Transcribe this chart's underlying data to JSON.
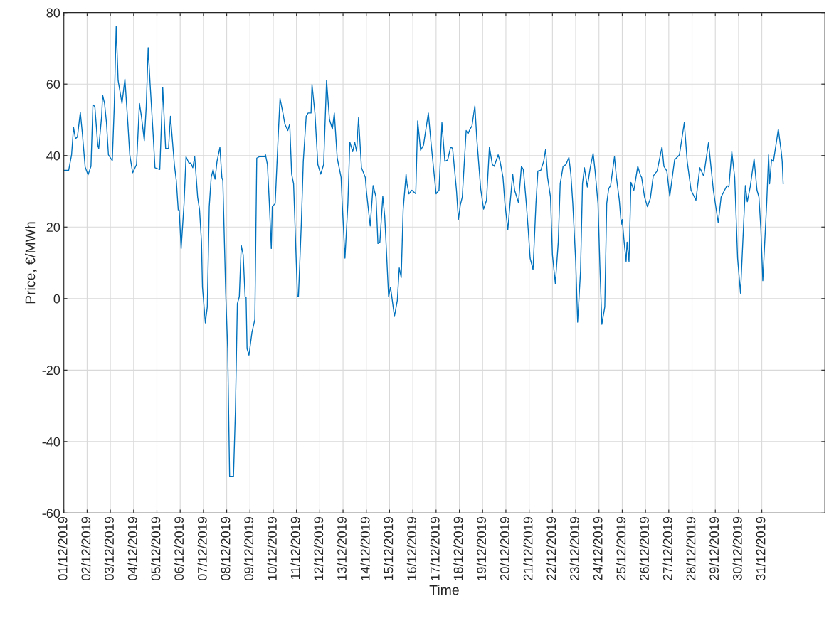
{
  "chart_data": {
    "type": "line",
    "xlabel": "Time",
    "ylabel": "Price, €/MWh",
    "x": [
      "2019-12-01T00:00",
      "2019-12-01T05:00",
      "2019-12-01T08:00",
      "2019-12-01T10:00",
      "2019-12-01T12:00",
      "2019-12-01T14:00",
      "2019-12-01T17:00",
      "2019-12-01T19:00",
      "2019-12-01T22:00",
      "2019-12-02T01:00",
      "2019-12-02T04:00",
      "2019-12-02T06:00",
      "2019-12-02T08:00",
      "2019-12-02T11:00",
      "2019-12-02T12:00",
      "2019-12-02T15:00",
      "2019-12-02T16:00",
      "2019-12-02T18:00",
      "2019-12-02T20:00",
      "2019-12-02T22:00",
      "2019-12-03T02:00",
      "2019-12-03T04:00",
      "2019-12-03T06:00",
      "2019-12-03T08:00",
      "2019-12-03T12:00",
      "2019-12-03T15:00",
      "2019-12-03T18:00",
      "2019-12-03T20:00",
      "2019-12-03T23:00",
      "2019-12-04T03:00",
      "2019-12-04T06:00",
      "2019-12-04T08:00",
      "2019-12-04T11:00",
      "2019-12-04T13:00",
      "2019-12-04T15:00",
      "2019-12-04T17:00",
      "2019-12-04T20:00",
      "2019-12-04T22:00",
      "2019-12-05T03:00",
      "2019-12-05T06:00",
      "2019-12-05T09:00",
      "2019-12-05T12:00",
      "2019-12-05T14:00",
      "2019-12-05T18:00",
      "2019-12-05T20:00",
      "2019-12-05T22:00",
      "2019-12-05T23:00",
      "2019-12-06T01:00",
      "2019-12-06T04:00",
      "2019-12-06T06:00",
      "2019-12-06T09:00",
      "2019-12-06T11:00",
      "2019-12-06T13:00",
      "2019-12-06T15:00",
      "2019-12-06T18:00",
      "2019-12-06T20:00",
      "2019-12-06T22:00",
      "2019-12-06T23:00",
      "2019-12-07T02:00",
      "2019-12-07T04:00",
      "2019-12-07T06:00",
      "2019-12-07T08:00",
      "2019-12-07T10:00",
      "2019-12-07T12:00",
      "2019-12-07T14:00",
      "2019-12-07T17:00",
      "2019-12-07T19:00",
      "2019-12-07T20:00",
      "2019-12-07T23:00",
      "2019-12-08T01:00",
      "2019-12-08T03:00",
      "2019-12-08T07:00",
      "2019-12-08T09:00",
      "2019-12-08T11:00",
      "2019-12-08T13:00",
      "2019-12-08T15:00",
      "2019-12-08T17:00",
      "2019-12-08T19:00",
      "2019-12-08T20:00",
      "2019-12-08T21:00",
      "2019-12-08T23:00",
      "2019-12-09T02:00",
      "2019-12-09T05:00",
      "2019-12-09T07:00",
      "2019-12-09T10:00",
      "2019-12-09T15:00",
      "2019-12-09T16:00",
      "2019-12-09T18:00",
      "2019-12-09T20:00",
      "2019-12-09T22:00",
      "2019-12-09T23:00",
      "2019-12-10T02:00",
      "2019-12-10T05:00",
      "2019-12-10T07:00",
      "2019-12-10T10:00",
      "2019-12-10T12:00",
      "2019-12-10T15:00",
      "2019-12-10T17:00",
      "2019-12-10T19:00",
      "2019-12-10T21:00",
      "2019-12-11T01:00",
      "2019-12-11T02:00",
      "2019-12-11T05:00",
      "2019-12-11T07:00",
      "2019-12-11T10:00",
      "2019-12-11T12:00",
      "2019-12-11T15:00",
      "2019-12-11T16:00",
      "2019-12-11T19:00",
      "2019-12-11T22:00",
      "2019-12-12T01:00",
      "2019-12-12T04:00",
      "2019-12-12T07:00",
      "2019-12-12T10:00",
      "2019-12-12T13:00",
      "2019-12-12T15:00",
      "2019-12-12T18:00",
      "2019-12-12T22:00",
      "2019-12-12T23:00",
      "2019-12-13T02:00",
      "2019-12-13T05:00",
      "2019-12-13T07:00",
      "2019-12-13T10:00",
      "2019-12-13T12:00",
      "2019-12-13T14:00",
      "2019-12-13T16:00",
      "2019-12-13T19:00",
      "2019-12-13T23:00",
      "2019-12-14T00:00",
      "2019-12-14T04:00",
      "2019-12-14T07:00",
      "2019-12-14T10:00",
      "2019-12-14T12:00",
      "2019-12-14T14:00",
      "2019-12-14T17:00",
      "2019-12-14T19:00",
      "2019-12-14T20:00",
      "2019-12-14T23:00",
      "2019-12-15T01:00",
      "2019-12-15T05:00",
      "2019-12-15T08:00",
      "2019-12-15T10:00",
      "2019-12-15T12:00",
      "2019-12-15T14:00",
      "2019-12-15T17:00",
      "2019-12-15T18:00",
      "2019-12-15T20:00",
      "2019-12-15T23:00",
      "2019-12-16T03:00",
      "2019-12-16T05:00",
      "2019-12-16T08:00",
      "2019-12-16T11:00",
      "2019-12-16T16:00",
      "2019-12-16T19:00",
      "2019-12-17T00:00",
      "2019-12-17T03:00",
      "2019-12-17T06:00",
      "2019-12-17T09:00",
      "2019-12-17T12:00",
      "2019-12-17T15:00",
      "2019-12-17T17:00",
      "2019-12-17T21:00",
      "2019-12-17T23:00",
      "2019-12-18T01:00",
      "2019-12-18T03:00",
      "2019-12-18T07:00",
      "2019-12-18T09:00",
      "2019-12-18T11:00",
      "2019-12-18T13:00",
      "2019-12-18T16:00",
      "2019-12-18T18:00",
      "2019-12-18T22:00",
      "2019-12-19T01:00",
      "2019-12-19T04:00",
      "2019-12-19T07:00",
      "2019-12-19T10:00",
      "2019-12-19T12:00",
      "2019-12-19T16:00",
      "2019-12-19T18:00",
      "2019-12-19T21:00",
      "2019-12-19T23:00",
      "2019-12-20T02:00",
      "2019-12-20T04:00",
      "2019-12-20T07:00",
      "2019-12-20T09:00",
      "2019-12-20T13:00",
      "2019-12-20T16:00",
      "2019-12-20T18:00",
      "2019-12-20T21:00",
      "2019-12-20T23:00",
      "2019-12-21T01:00",
      "2019-12-21T04:00",
      "2019-12-21T07:00",
      "2019-12-21T09:00",
      "2019-12-21T12:00",
      "2019-12-21T15:00",
      "2019-12-21T17:00",
      "2019-12-21T19:00",
      "2019-12-21T22:00",
      "2019-12-22T00:00",
      "2019-12-22T03:00",
      "2019-12-22T06:00",
      "2019-12-22T08:00",
      "2019-12-22T11:00",
      "2019-12-22T14:00",
      "2019-12-22T17:00",
      "2019-12-22T19:00",
      "2019-12-22T21:00",
      "2019-12-23T00:00",
      "2019-12-23T02:00",
      "2019-12-23T05:00",
      "2019-12-23T07:00",
      "2019-12-23T09:00",
      "2019-12-23T12:00",
      "2019-12-23T15:00",
      "2019-12-23T18:00",
      "2019-12-23T20:00",
      "2019-12-23T23:00",
      "2019-12-24T01:00",
      "2019-12-24T03:00",
      "2019-12-24T06:00",
      "2019-12-24T08:00",
      "2019-12-24T10:00",
      "2019-12-24T12:00",
      "2019-12-24T16:00",
      "2019-12-24T18:00",
      "2019-12-24T21:00",
      "2019-12-24T23:00",
      "2019-12-25T00:00",
      "2019-12-25T02:00",
      "2019-12-25T04:00",
      "2019-12-25T05:00",
      "2019-12-25T07:00",
      "2019-12-25T09:00",
      "2019-12-25T12:00",
      "2019-12-25T16:00",
      "2019-12-25T19:00",
      "2019-12-25T20:00",
      "2019-12-25T23:00",
      "2019-12-26T02:00",
      "2019-12-26T05:00",
      "2019-12-26T08:00",
      "2019-12-26T12:00",
      "2019-12-26T17:00",
      "2019-12-26T19:00",
      "2019-12-26T22:00",
      "2019-12-27T01:00",
      "2019-12-27T06:00",
      "2019-12-27T11:00",
      "2019-12-27T16:00",
      "2019-12-27T19:00",
      "2019-12-27T23:00",
      "2019-12-28T04:00",
      "2019-12-28T08:00",
      "2019-12-28T12:00",
      "2019-12-28T17:00",
      "2019-12-28T22:00",
      "2019-12-29T03:00",
      "2019-12-29T06:00",
      "2019-12-29T12:00",
      "2019-12-29T14:00",
      "2019-12-29T17:00",
      "2019-12-29T20:00",
      "2019-12-29T23:00",
      "2019-12-30T02:00",
      "2019-12-30T07:00",
      "2019-12-30T09:00",
      "2019-12-30T12:00",
      "2019-12-30T16:00",
      "2019-12-30T19:00",
      "2019-12-30T21:00",
      "2019-12-30T23:00",
      "2019-12-31T01:00",
      "2019-12-31T05:00",
      "2019-12-31T07:00",
      "2019-12-31T08:00",
      "2019-12-31T10:00",
      "2019-12-31T12:00",
      "2019-12-31T17:00",
      "2019-12-31T20:00",
      "2019-12-31T21:00",
      "2019-12-31T22:00"
    ],
    "series": [
      {
        "color": "#0072bd",
        "values": [
          35.9,
          35.9,
          40.2,
          47.9,
          44.7,
          45.2,
          52.1,
          46.5,
          36.8,
          34.6,
          37.0,
          54.2,
          53.7,
          42.9,
          42.0,
          51.0,
          56.9,
          54.6,
          49.2,
          40.2,
          38.6,
          53.7,
          76.1,
          61.0,
          54.6,
          61.4,
          49.2,
          40.2,
          35.2,
          37.5,
          54.6,
          51.0,
          44.2,
          53.7,
          70.2,
          60.0,
          46.5,
          36.6,
          36.1,
          59.1,
          42.0,
          42.0,
          51.0,
          37.5,
          33.0,
          24.8,
          24.8,
          14.0,
          26.6,
          39.7,
          37.9,
          37.9,
          36.6,
          39.7,
          28.4,
          24.8,
          15.8,
          3.2,
          -6.8,
          -2.3,
          25.7,
          33.9,
          36.1,
          33.4,
          38.4,
          42.3,
          33.9,
          33.0,
          1.4,
          -14.0,
          -49.7,
          -49.7,
          -31.2,
          -1.4,
          0.5,
          14.9,
          12.2,
          0.5,
          0.3,
          -14.0,
          -15.8,
          -9.5,
          -5.9,
          39.3,
          39.7,
          39.7,
          40.2,
          37.5,
          26.6,
          14.0,
          25.7,
          26.6,
          44.7,
          56.0,
          51.9,
          48.8,
          47.0,
          48.8,
          34.8,
          32.1,
          0.5,
          0.5,
          21.2,
          38.4,
          51.0,
          51.9,
          51.9,
          59.9,
          51.9,
          37.5,
          34.8,
          37.5,
          61.1,
          50.1,
          47.4,
          51.9,
          39.3,
          33.9,
          27.5,
          11.3,
          26.6,
          43.8,
          41.1,
          43.8,
          41.1,
          50.6,
          36.6,
          33.9,
          30.3,
          20.3,
          31.6,
          28.4,
          15.4,
          15.8,
          28.6,
          23.0,
          17.6,
          0.5,
          3.2,
          -5.0,
          -0.5,
          8.6,
          5.9,
          24.8,
          34.8,
          32.1,
          29.3,
          30.3,
          29.3,
          49.7,
          41.5,
          42.9,
          51.9,
          42.9,
          29.3,
          30.3,
          49.2,
          38.4,
          38.8,
          42.4,
          42.0,
          30.3,
          22.1,
          26.2,
          28.4,
          47.0,
          46.1,
          47.4,
          48.3,
          53.9,
          44.7,
          30.7,
          25.0,
          27.5,
          42.4,
          37.5,
          37.0,
          40.2,
          38.4,
          33.9,
          26.6,
          19.2,
          25.7,
          34.8,
          30.3,
          26.8,
          37.0,
          36.1,
          26.8,
          19.4,
          11.3,
          8.1,
          26.6,
          35.7,
          35.9,
          38.4,
          41.8,
          33.9,
          28.4,
          12.2,
          4.2,
          15.8,
          32.1,
          37.0,
          37.5,
          39.5,
          34.8,
          26.6,
          10.4,
          -6.6,
          7.7,
          32.1,
          36.6,
          31.2,
          36.6,
          40.6,
          35.7,
          26.6,
          8.6,
          -7.2,
          -2.3,
          26.6,
          30.7,
          31.6,
          39.7,
          33.9,
          27.5,
          20.8,
          22.1,
          15.8,
          10.4,
          15.8,
          10.4,
          32.5,
          30.3,
          37.0,
          34.3,
          33.9,
          28.4,
          25.7,
          28.0,
          34.3,
          35.7,
          42.4,
          37.0,
          35.7,
          28.6,
          38.8,
          40.2,
          49.2,
          38.4,
          30.3,
          27.5,
          36.6,
          34.3,
          43.6,
          30.3,
          21.2,
          28.4,
          31.6,
          31.2,
          41.1,
          33.9,
          11.3,
          1.5,
          31.6,
          27.1,
          31.2,
          39.1,
          30.3,
          28.4,
          19.4,
          5.0,
          26.6,
          40.2,
          32.1,
          38.8,
          38.4,
          47.4,
          41.1,
          38.4,
          32.1
        ]
      }
    ],
    "xlim": [
      "2019-12-01T00:00",
      "2020-01-02T17:00"
    ],
    "xticks": [
      {
        "value": "2019-12-01",
        "label": "01/12/2019"
      },
      {
        "value": "2019-12-02",
        "label": "02/12/2019"
      },
      {
        "value": "2019-12-03",
        "label": "03/12/2019"
      },
      {
        "value": "2019-12-04",
        "label": "04/12/2019"
      },
      {
        "value": "2019-12-05",
        "label": "05/12/2019"
      },
      {
        "value": "2019-12-06",
        "label": "06/12/2019"
      },
      {
        "value": "2019-12-07",
        "label": "07/12/2019"
      },
      {
        "value": "2019-12-08",
        "label": "08/12/2019"
      },
      {
        "value": "2019-12-09",
        "label": "09/12/2019"
      },
      {
        "value": "2019-12-10",
        "label": "10/12/2019"
      },
      {
        "value": "2019-12-11",
        "label": "11/12/2019"
      },
      {
        "value": "2019-12-12",
        "label": "12/12/2019"
      },
      {
        "value": "2019-12-13",
        "label": "13/12/2019"
      },
      {
        "value": "2019-12-14",
        "label": "14/12/2019"
      },
      {
        "value": "2019-12-15",
        "label": "15/12/2019"
      },
      {
        "value": "2019-12-16",
        "label": "16/12/2019"
      },
      {
        "value": "2019-12-17",
        "label": "17/12/2019"
      },
      {
        "value": "2019-12-18",
        "label": "18/12/2019"
      },
      {
        "value": "2019-12-19",
        "label": "19/12/2019"
      },
      {
        "value": "2019-12-20",
        "label": "20/12/2019"
      },
      {
        "value": "2019-12-21",
        "label": "21/12/2019"
      },
      {
        "value": "2019-12-22",
        "label": "22/12/2019"
      },
      {
        "value": "2019-12-23",
        "label": "23/12/2019"
      },
      {
        "value": "2019-12-24",
        "label": "24/12/2019"
      },
      {
        "value": "2019-12-25",
        "label": "25/12/2019"
      },
      {
        "value": "2019-12-26",
        "label": "26/12/2019"
      },
      {
        "value": "2019-12-27",
        "label": "27/12/2019"
      },
      {
        "value": "2019-12-28",
        "label": "28/12/2019"
      },
      {
        "value": "2019-12-29",
        "label": "29/12/2019"
      },
      {
        "value": "2019-12-30",
        "label": "30/12/2019"
      },
      {
        "value": "2019-12-31",
        "label": "31/12/2019"
      }
    ],
    "ylim": [
      -60,
      80
    ],
    "yticks": [
      -60,
      -40,
      -20,
      0,
      20,
      40,
      60,
      80
    ],
    "grid": true,
    "marker": "none",
    "line_style": "solid"
  }
}
